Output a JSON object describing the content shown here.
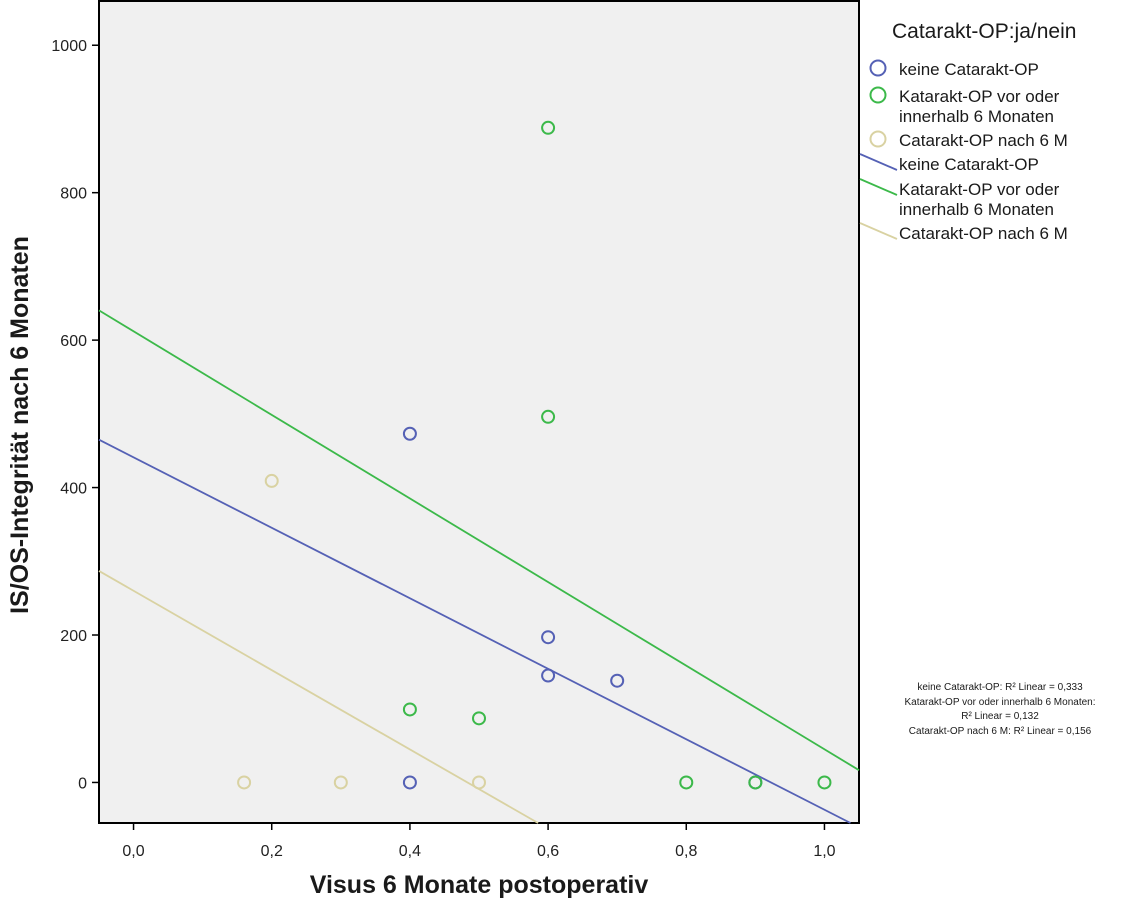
{
  "chart_data": {
    "type": "scatter",
    "title": "",
    "xlabel": "Visus 6 Monate postoperativ",
    "ylabel": "IS/OS-Integrität nach 6 Monaten",
    "xlim": [
      -0.05,
      1.05
    ],
    "ylim": [
      -55,
      1060
    ],
    "x_ticks": [
      0.0,
      0.2,
      0.4,
      0.6,
      0.8,
      1.0
    ],
    "x_tick_labels": [
      "0,0",
      "0,2",
      "0,4",
      "0,6",
      "0,8",
      "1,0"
    ],
    "y_ticks": [
      0,
      200,
      400,
      600,
      800,
      1000
    ],
    "y_tick_labels": [
      "0",
      "200",
      "400",
      "600",
      "800",
      "1000"
    ],
    "grid": false,
    "legend_title": "Catarakt-OP:ja/nein",
    "legend_position": "right",
    "series": [
      {
        "name": "keine Catarakt-OP",
        "color": "#5561b5",
        "points": [
          [
            0.4,
            473
          ],
          [
            0.6,
            197
          ],
          [
            0.6,
            145
          ],
          [
            0.7,
            138
          ],
          [
            0.4,
            0
          ],
          [
            0.9,
            0
          ]
        ],
        "fit": {
          "intercept": 441,
          "slope": -478
        }
      },
      {
        "name": "Katarakt-OP vor oder innerhalb 6 Monaten",
        "color": "#3cb94a",
        "points": [
          [
            0.6,
            888
          ],
          [
            0.6,
            496
          ],
          [
            0.4,
            99
          ],
          [
            0.5,
            87
          ],
          [
            0.8,
            0
          ],
          [
            0.9,
            0
          ],
          [
            1.0,
            0
          ]
        ],
        "fit": {
          "intercept": 612,
          "slope": -567
        }
      },
      {
        "name": "Catarakt-OP nach 6 M",
        "color": "#d9d2a2",
        "points": [
          [
            0.2,
            409
          ],
          [
            0.16,
            0
          ],
          [
            0.3,
            0
          ],
          [
            0.5,
            0
          ]
        ],
        "fit": {
          "intercept": 260,
          "slope": -538
        }
      }
    ],
    "legend_labels": {
      "markers": [
        [
          "keine Catarakt-OP"
        ],
        [
          "Katarakt-OP vor oder",
          "innerhalb 6 Monaten"
        ],
        [
          "Catarakt-OP nach 6 M"
        ]
      ],
      "lines": [
        [
          "keine Catarakt-OP"
        ],
        [
          "Katarakt-OP vor oder",
          "innerhalb 6 Monaten"
        ],
        [
          "Catarakt-OP nach 6 M"
        ]
      ]
    },
    "annotations": [
      "keine Catarakt-OP: R² Linear = 0,333",
      "Katarakt-OP vor oder innerhalb 6 Monaten:",
      "R² Linear = 0,132",
      "Catarakt-OP nach 6 M: R² Linear = 0,156"
    ]
  }
}
